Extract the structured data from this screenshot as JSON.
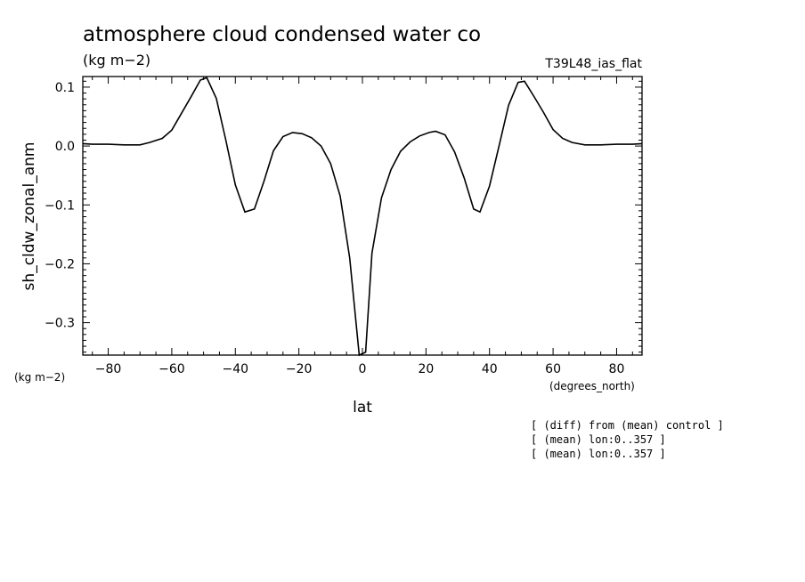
{
  "chart_data": {
    "type": "line",
    "title": "atmosphere cloud condensed water co",
    "subtitle_units": "(kg m−2)",
    "model_label": "T39L48_ias_flat",
    "ylabel": "sh_cldw_zonal_anm",
    "y_units_label": "(kg m−2)",
    "xlabel": "lat",
    "x_units_label": "(degrees_north)",
    "xlim": [
      -88,
      88
    ],
    "ylim": [
      -0.355,
      0.118
    ],
    "x_ticks": [
      -80,
      -60,
      -40,
      -20,
      0,
      20,
      40,
      60,
      80
    ],
    "x_tick_labels": [
      "−80",
      "−60",
      "−40",
      "−20",
      "0",
      "20",
      "40",
      "60",
      "80"
    ],
    "y_ticks": [
      0.1,
      0.0,
      -0.1,
      -0.2,
      -0.3
    ],
    "y_tick_labels": [
      "0.1",
      "0.0",
      "−0.1",
      "−0.2",
      "−0.3"
    ],
    "series": [
      {
        "x": [
          -88,
          -85,
          -80,
          -75,
          -70,
          -67,
          -63,
          -60,
          -57,
          -54,
          -51,
          -49,
          -46,
          -43,
          -40,
          -37,
          -34,
          -31,
          -28,
          -25,
          -22,
          -19,
          -16,
          -13,
          -10,
          -7,
          -4,
          -1,
          1,
          3,
          6,
          9,
          12,
          15,
          18,
          21,
          23,
          26,
          29,
          32,
          35,
          37,
          40,
          43,
          46,
          49,
          51,
          54,
          57,
          60,
          63,
          66,
          70,
          75,
          80,
          85,
          88
        ],
        "values": [
          0.004,
          0.003,
          0.003,
          0.002,
          0.002,
          0.006,
          0.013,
          0.027,
          0.055,
          0.083,
          0.112,
          0.116,
          0.081,
          0.01,
          -0.066,
          -0.112,
          -0.107,
          -0.06,
          -0.008,
          0.016,
          0.023,
          0.021,
          0.014,
          0.0,
          -0.03,
          -0.085,
          -0.19,
          -0.355,
          -0.35,
          -0.182,
          -0.088,
          -0.04,
          -0.009,
          0.007,
          0.017,
          0.023,
          0.025,
          0.019,
          -0.01,
          -0.054,
          -0.107,
          -0.112,
          -0.068,
          0.0,
          0.069,
          0.108,
          0.11,
          0.084,
          0.057,
          0.028,
          0.013,
          0.006,
          0.002,
          0.002,
          0.003,
          0.003,
          0.004
        ]
      }
    ]
  },
  "notes": [
    "[ (diff) from (mean) control ]",
    "[ (mean) lon:0..357 ]",
    "[ (mean) lon:0..357 ]"
  ],
  "colors": {
    "line": "#000000",
    "background": "#ffffff"
  }
}
